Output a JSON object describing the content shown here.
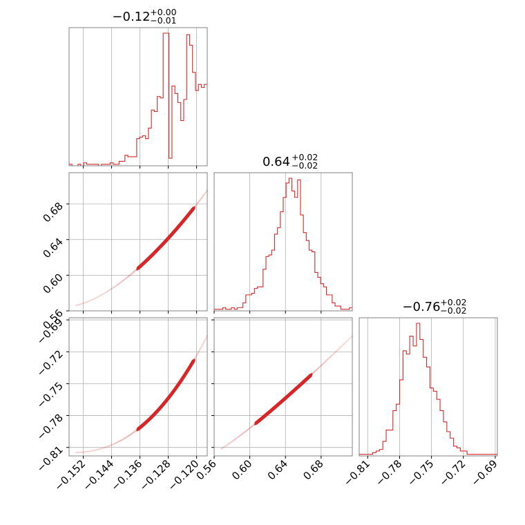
{
  "chart_data": {
    "type": "corner",
    "color": "#d62728",
    "parameters": [
      {
        "median": "−0.12",
        "plus": "+0.00",
        "minus": "−0.01",
        "range": [
          -0.156,
          -0.117
        ],
        "ticks": [
          -0.152,
          -0.144,
          -0.136,
          -0.128,
          -0.12
        ],
        "tick_labels": [
          "−0.152",
          "−0.144",
          "−0.136",
          "−0.128",
          "−0.120"
        ],
        "histogram": {
          "edges": [
            -0.156,
            -0.117
          ],
          "counts": [
            1,
            0,
            0,
            1,
            0,
            2,
            1,
            1,
            1,
            1,
            0,
            1,
            1,
            1,
            2,
            1,
            1,
            3,
            3,
            7,
            6,
            6,
            6,
            18,
            19,
            20,
            18,
            25,
            37,
            36,
            46,
            45,
            88,
            88,
            5,
            53,
            48,
            42,
            30,
            44,
            87,
            80,
            62,
            50,
            54,
            52,
            54
          ]
        }
      },
      {
        "median": "0.64",
        "plus": "+0.02",
        "minus": "−0.02",
        "range": [
          0.56,
          0.715
        ],
        "ticks": [
          0.56,
          0.6,
          0.64,
          0.68
        ],
        "tick_labels": [
          "0.56",
          "0.60",
          "0.64",
          "0.68"
        ],
        "histogram": {
          "edges": [
            0.56,
            0.715
          ],
          "counts": [
            1,
            1,
            1,
            2,
            1,
            1,
            2,
            1,
            2,
            2,
            5,
            10,
            10,
            11,
            14,
            15,
            15,
            26,
            34,
            35,
            38,
            48,
            52,
            62,
            71,
            80,
            83,
            75,
            71,
            82,
            60,
            49,
            44,
            38,
            37,
            24,
            21,
            17,
            15,
            10,
            10,
            5,
            3,
            3,
            1,
            1,
            1,
            2
          ]
        }
      },
      {
        "median": "−0.76",
        "plus": "+0.02",
        "minus": "−0.02",
        "range": [
          -0.818,
          -0.688
        ],
        "ticks": [
          -0.81,
          -0.78,
          -0.75,
          -0.72,
          -0.69
        ],
        "tick_labels": [
          "−0.81",
          "−0.78",
          "−0.75",
          "−0.72",
          "−0.69"
        ],
        "histogram": {
          "edges": [
            -0.818,
            -0.688
          ],
          "counts": [
            1,
            1,
            1,
            1,
            2,
            3,
            4,
            9,
            16,
            16,
            28,
            32,
            47,
            65,
            63,
            74,
            68,
            82,
            72,
            61,
            55,
            42,
            40,
            35,
            28,
            21,
            15,
            11,
            6,
            5,
            3,
            3,
            1,
            1,
            1,
            1,
            1,
            1,
            1,
            1,
            1
          ]
        }
      }
    ],
    "pair_curves": {
      "p0_p1": {
        "a": 0.13,
        "b": 1.15,
        "c": 0.64
      },
      "p0_p2": {
        "a": -0.12,
        "b": 5.9,
        "c": -0.765
      },
      "p1_p2": {
        "a": -0.12,
        "b": 1.2,
        "c": -0.765
      }
    }
  }
}
